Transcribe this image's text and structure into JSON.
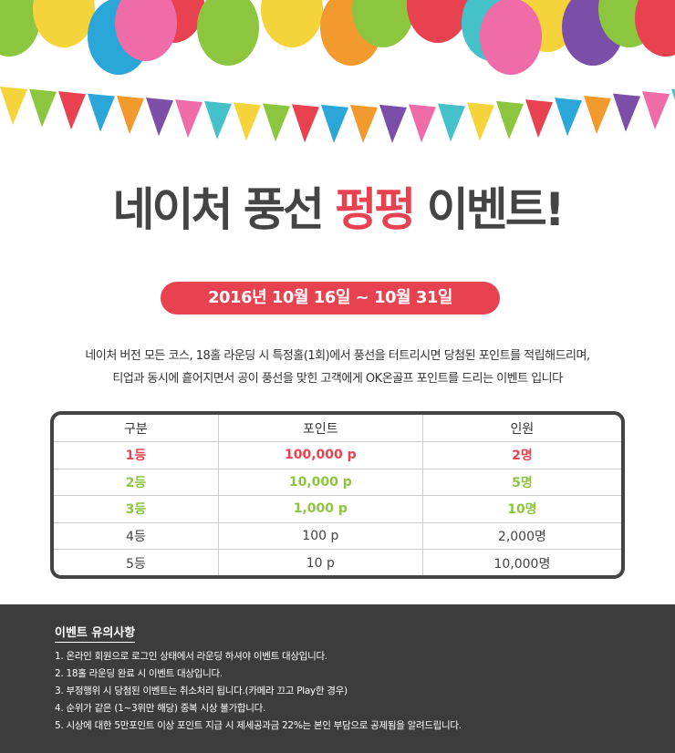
{
  "title": {
    "part1": "네이처 풍선 ",
    "highlight": "펑펑",
    "part2": " 이벤트!"
  },
  "period": "2016년 10월 16일 ~ 10월 31일",
  "description": [
    "네이처 버전 모든 코스, 18홀 라운딩 시 특정홀(1회)에서 풍선을 터트리시면 당첨된 포인트를 적립해드리며,",
    "티업과 동시에 흩어지면서 공이 풍선을 맞힌 고객에게 OK온골프 포인트를 드리는 이벤트 입니다"
  ],
  "table": {
    "headers": [
      "구분",
      "포인트",
      "인원"
    ],
    "rows": [
      {
        "rank": "1등",
        "points": "100,000 p",
        "count": "2명",
        "color": "red"
      },
      {
        "rank": "2등",
        "points": "10,000 p",
        "count": "5명",
        "color": "green"
      },
      {
        "rank": "3등",
        "points": "1,000 p",
        "count": "10명",
        "color": "green"
      },
      {
        "rank": "4등",
        "points": "100 p",
        "count": "2,000명",
        "color": "gray"
      },
      {
        "rank": "5등",
        "points": "10 p",
        "count": "10,000명",
        "color": "gray"
      }
    ]
  },
  "notes": {
    "title": "이벤트 유의사항",
    "items": [
      "1. 온라인 회원으로 로그인 상태에서 라운딩 하셔야 이벤트 대상입니다.",
      "2. 18홀 라운딩 완료 시 이벤트 대상입니다.",
      "3. 부정행위 시 당첨된 이벤트는 취소처리 됩니다.(카메라 끄고 Play한 경우)",
      "4. 순위가 같은 (1~3위만 해당) 중복 시상 불가합니다.",
      "5. 시상에 대한 5만포인트 이상 포인트 지급 시 제세공과금 22%는 본인 부담으로 공제됨을 알려드립니다."
    ]
  },
  "colors": {
    "accent": "#e8414f",
    "green": "#8cc63f",
    "dark": "#3c3c3c"
  }
}
